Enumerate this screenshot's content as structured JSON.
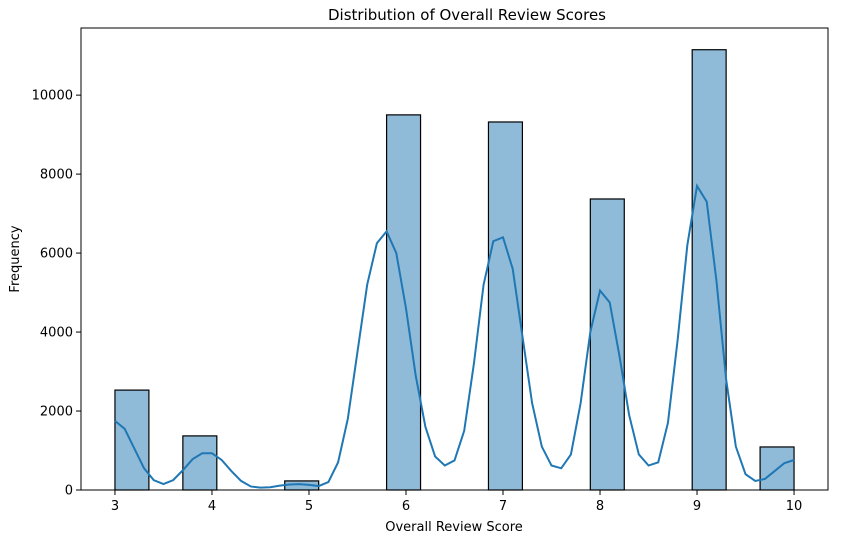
{
  "chart_data": {
    "type": "bar",
    "title": "Distribution of Overall Review Scores",
    "xlabel": "Overall Review Score",
    "ylabel": "Frequency",
    "xlim": [
      2.65,
      10.35
    ],
    "ylim": [
      0,
      11700
    ],
    "xticks": [
      3,
      4,
      5,
      6,
      7,
      8,
      9,
      10
    ],
    "yticks": [
      0,
      2000,
      4000,
      6000,
      8000,
      10000
    ],
    "bins": [
      {
        "x0": 3.0,
        "x1": 3.35,
        "value": 2530
      },
      {
        "x0": 3.7,
        "x1": 4.05,
        "value": 1370
      },
      {
        "x0": 4.75,
        "x1": 5.1,
        "value": 230
      },
      {
        "x0": 5.8,
        "x1": 6.15,
        "value": 9500
      },
      {
        "x0": 6.85,
        "x1": 7.2,
        "value": 9320
      },
      {
        "x0": 7.9,
        "x1": 8.25,
        "value": 7370
      },
      {
        "x0": 8.95,
        "x1": 9.3,
        "value": 11150
      },
      {
        "x0": 9.65,
        "x1": 10.0,
        "value": 1090
      }
    ],
    "kde": {
      "x": [
        3.0,
        3.1,
        3.2,
        3.3,
        3.4,
        3.5,
        3.6,
        3.7,
        3.8,
        3.9,
        4.0,
        4.1,
        4.2,
        4.3,
        4.4,
        4.5,
        4.6,
        4.7,
        4.8,
        4.9,
        5.0,
        5.1,
        5.2,
        5.3,
        5.4,
        5.5,
        5.6,
        5.7,
        5.8,
        5.9,
        6.0,
        6.1,
        6.2,
        6.3,
        6.4,
        6.5,
        6.6,
        6.7,
        6.8,
        6.9,
        7.0,
        7.1,
        7.2,
        7.3,
        7.4,
        7.5,
        7.6,
        7.7,
        7.8,
        7.9,
        8.0,
        8.1,
        8.2,
        8.3,
        8.4,
        8.5,
        8.6,
        8.7,
        8.8,
        8.9,
        9.0,
        9.1,
        9.2,
        9.3,
        9.4,
        9.5,
        9.6,
        9.7,
        9.8,
        9.9,
        10.0
      ],
      "y": [
        1750,
        1550,
        1050,
        550,
        250,
        150,
        250,
        500,
        780,
        930,
        930,
        760,
        480,
        230,
        90,
        60,
        70,
        110,
        140,
        150,
        130,
        100,
        200,
        700,
        1800,
        3500,
        5200,
        6250,
        6550,
        6000,
        4600,
        2900,
        1600,
        850,
        620,
        750,
        1500,
        3200,
        5200,
        6300,
        6400,
        5600,
        3900,
        2200,
        1100,
        620,
        550,
        900,
        2200,
        4000,
        5050,
        4750,
        3400,
        1900,
        900,
        620,
        700,
        1700,
        3800,
        6200,
        7700,
        7300,
        5300,
        2800,
        1100,
        400,
        230,
        280,
        480,
        680,
        760
      ]
    }
  }
}
